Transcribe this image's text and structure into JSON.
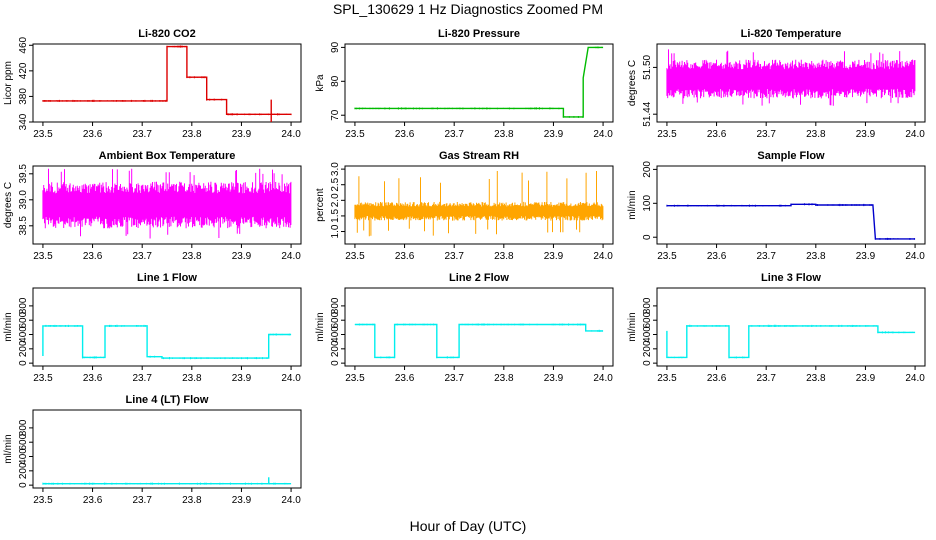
{
  "figure": {
    "title": "SPL_130629  1 Hz Diagnostics Zoomed PM",
    "xlabel": "Hour of Day (UTC)"
  },
  "chart_data": [
    {
      "type": "line",
      "title": "Li-820 CO2",
      "ylabel": "Licor ppm",
      "color": "#dd0000",
      "xlim": [
        23.48,
        24.02
      ],
      "xticks": [
        23.5,
        23.6,
        23.7,
        23.8,
        23.9,
        24.0
      ],
      "ylim": [
        340,
        462
      ],
      "yticks": [
        340,
        380,
        420,
        460
      ],
      "series": [
        {
          "kind": "step",
          "points": [
            [
              23.5,
              373
            ],
            [
              23.75,
              373
            ],
            [
              23.75,
              458
            ],
            [
              23.79,
              458
            ],
            [
              23.79,
              410
            ],
            [
              23.83,
              410
            ],
            [
              23.83,
              375
            ],
            [
              23.87,
              375
            ],
            [
              23.87,
              352
            ],
            [
              24.0,
              352
            ]
          ],
          "spikes": [
            [
              23.96,
              335,
              375
            ]
          ]
        }
      ]
    },
    {
      "type": "line",
      "title": "Li-820 Pressure",
      "ylabel": "kPa",
      "color": "#00bb00",
      "xlim": [
        23.48,
        24.02
      ],
      "xticks": [
        23.5,
        23.6,
        23.7,
        23.8,
        23.9,
        24.0
      ],
      "ylim": [
        68,
        91
      ],
      "yticks": [
        70,
        80,
        90
      ],
      "series": [
        {
          "kind": "step",
          "points": [
            [
              23.5,
              72
            ],
            [
              23.92,
              72
            ],
            [
              23.92,
              69.5
            ],
            [
              23.96,
              69.5
            ],
            [
              23.96,
              81
            ],
            [
              23.97,
              90
            ],
            [
              24.0,
              90
            ]
          ]
        }
      ]
    },
    {
      "type": "line",
      "title": "Li-820 Temperature",
      "ylabel": "degrees C",
      "color": "#ff00ff",
      "xlim": [
        23.48,
        24.02
      ],
      "xticks": [
        23.5,
        23.6,
        23.7,
        23.8,
        23.9,
        24.0
      ],
      "ylim": [
        51.43,
        51.53
      ],
      "yticks": [
        51.44,
        51.5
      ],
      "series": [
        {
          "kind": "band",
          "lo": 51.46,
          "hi": 51.51,
          "dip": 51.45,
          "peak": 51.525
        }
      ]
    },
    {
      "type": "line",
      "title": "Ambient Box Temperature",
      "ylabel": "degrees C",
      "color": "#ff00ff",
      "xlim": [
        23.48,
        24.02
      ],
      "xticks": [
        23.5,
        23.6,
        23.7,
        23.8,
        23.9,
        24.0
      ],
      "ylim": [
        38.15,
        39.65
      ],
      "yticks": [
        38.5,
        39.0,
        39.5
      ],
      "series": [
        {
          "kind": "band",
          "lo": 38.45,
          "hi": 39.35,
          "dip": 38.25,
          "peak": 39.6
        }
      ]
    },
    {
      "type": "line",
      "title": "Gas Stream RH",
      "ylabel": "percent",
      "color": "#ffa500",
      "xlim": [
        23.48,
        24.02
      ],
      "xticks": [
        23.5,
        23.6,
        23.7,
        23.8,
        23.9,
        24.0
      ],
      "ylim": [
        0.6,
        3.1
      ],
      "yticks": [
        1.0,
        1.5,
        2.0,
        2.5,
        3.0
      ],
      "series": [
        {
          "kind": "band",
          "lo": 1.35,
          "hi": 1.95,
          "dip": 0.85,
          "peak": 2.95
        }
      ]
    },
    {
      "type": "line",
      "title": "Sample Flow",
      "ylabel": "ml/min",
      "color": "#0000cc",
      "xlim": [
        23.48,
        24.02
      ],
      "xticks": [
        23.5,
        23.6,
        23.7,
        23.8,
        23.9,
        24.0
      ],
      "ylim": [
        -20,
        210
      ],
      "yticks": [
        0,
        100,
        200
      ],
      "series": [
        {
          "kind": "step",
          "points": [
            [
              23.5,
              93
            ],
            [
              23.75,
              93
            ],
            [
              23.75,
              97
            ],
            [
              23.8,
              97
            ],
            [
              23.8,
              95
            ],
            [
              23.915,
              95
            ],
            [
              23.92,
              -5
            ],
            [
              24.0,
              -5
            ]
          ]
        }
      ]
    },
    {
      "type": "line",
      "title": "Line 1 Flow",
      "ylabel": "ml/min",
      "color": "#00eeee",
      "xlim": [
        23.48,
        24.02
      ],
      "xticks": [
        23.5,
        23.6,
        23.7,
        23.8,
        23.9,
        24.0
      ],
      "ylim": [
        -40,
        1050
      ],
      "yticks": [
        0,
        200,
        400,
        600,
        800
      ],
      "series": [
        {
          "kind": "step",
          "points": [
            [
              23.5,
              100
            ],
            [
              23.5,
              520
            ],
            [
              23.58,
              520
            ],
            [
              23.58,
              80
            ],
            [
              23.625,
              80
            ],
            [
              23.625,
              520
            ],
            [
              23.71,
              520
            ],
            [
              23.71,
              90
            ],
            [
              23.74,
              90
            ],
            [
              23.74,
              70
            ],
            [
              23.955,
              70
            ],
            [
              23.955,
              400
            ],
            [
              24.0,
              400
            ]
          ]
        }
      ]
    },
    {
      "type": "line",
      "title": "Line 2 Flow",
      "ylabel": "ml/min",
      "color": "#00eeee",
      "xlim": [
        23.48,
        24.02
      ],
      "xticks": [
        23.5,
        23.6,
        23.7,
        23.8,
        23.9,
        24.0
      ],
      "ylim": [
        -40,
        1050
      ],
      "yticks": [
        0,
        200,
        400,
        600,
        800
      ],
      "series": [
        {
          "kind": "step",
          "points": [
            [
              23.5,
              540
            ],
            [
              23.54,
              540
            ],
            [
              23.54,
              80
            ],
            [
              23.58,
              80
            ],
            [
              23.58,
              540
            ],
            [
              23.665,
              540
            ],
            [
              23.665,
              80
            ],
            [
              23.71,
              80
            ],
            [
              23.71,
              540
            ],
            [
              23.965,
              540
            ],
            [
              23.965,
              450
            ],
            [
              24.0,
              450
            ]
          ]
        }
      ]
    },
    {
      "type": "line",
      "title": "Line 3 Flow",
      "ylabel": "ml/min",
      "color": "#00eeee",
      "xlim": [
        23.48,
        24.02
      ],
      "xticks": [
        23.5,
        23.6,
        23.7,
        23.8,
        23.9,
        24.0
      ],
      "ylim": [
        -40,
        1050
      ],
      "yticks": [
        0,
        200,
        400,
        600,
        800
      ],
      "series": [
        {
          "kind": "step",
          "points": [
            [
              23.5,
              450
            ],
            [
              23.5,
              80
            ],
            [
              23.54,
              80
            ],
            [
              23.54,
              520
            ],
            [
              23.625,
              520
            ],
            [
              23.625,
              80
            ],
            [
              23.665,
              80
            ],
            [
              23.665,
              520
            ],
            [
              23.925,
              520
            ],
            [
              23.925,
              430
            ],
            [
              24.0,
              430
            ]
          ]
        }
      ]
    },
    {
      "type": "line",
      "title": "Line 4 (LT) Flow",
      "ylabel": "ml/min",
      "color": "#00eeee",
      "xlim": [
        23.48,
        24.02
      ],
      "xticks": [
        23.5,
        23.6,
        23.7,
        23.8,
        23.9,
        24.0
      ],
      "ylim": [
        -40,
        1050
      ],
      "yticks": [
        0,
        200,
        400,
        600,
        800
      ],
      "series": [
        {
          "kind": "step",
          "points": [
            [
              23.5,
              20
            ],
            [
              24.0,
              20
            ]
          ],
          "spikes": [
            [
              23.955,
              20,
              110
            ]
          ]
        }
      ]
    }
  ]
}
